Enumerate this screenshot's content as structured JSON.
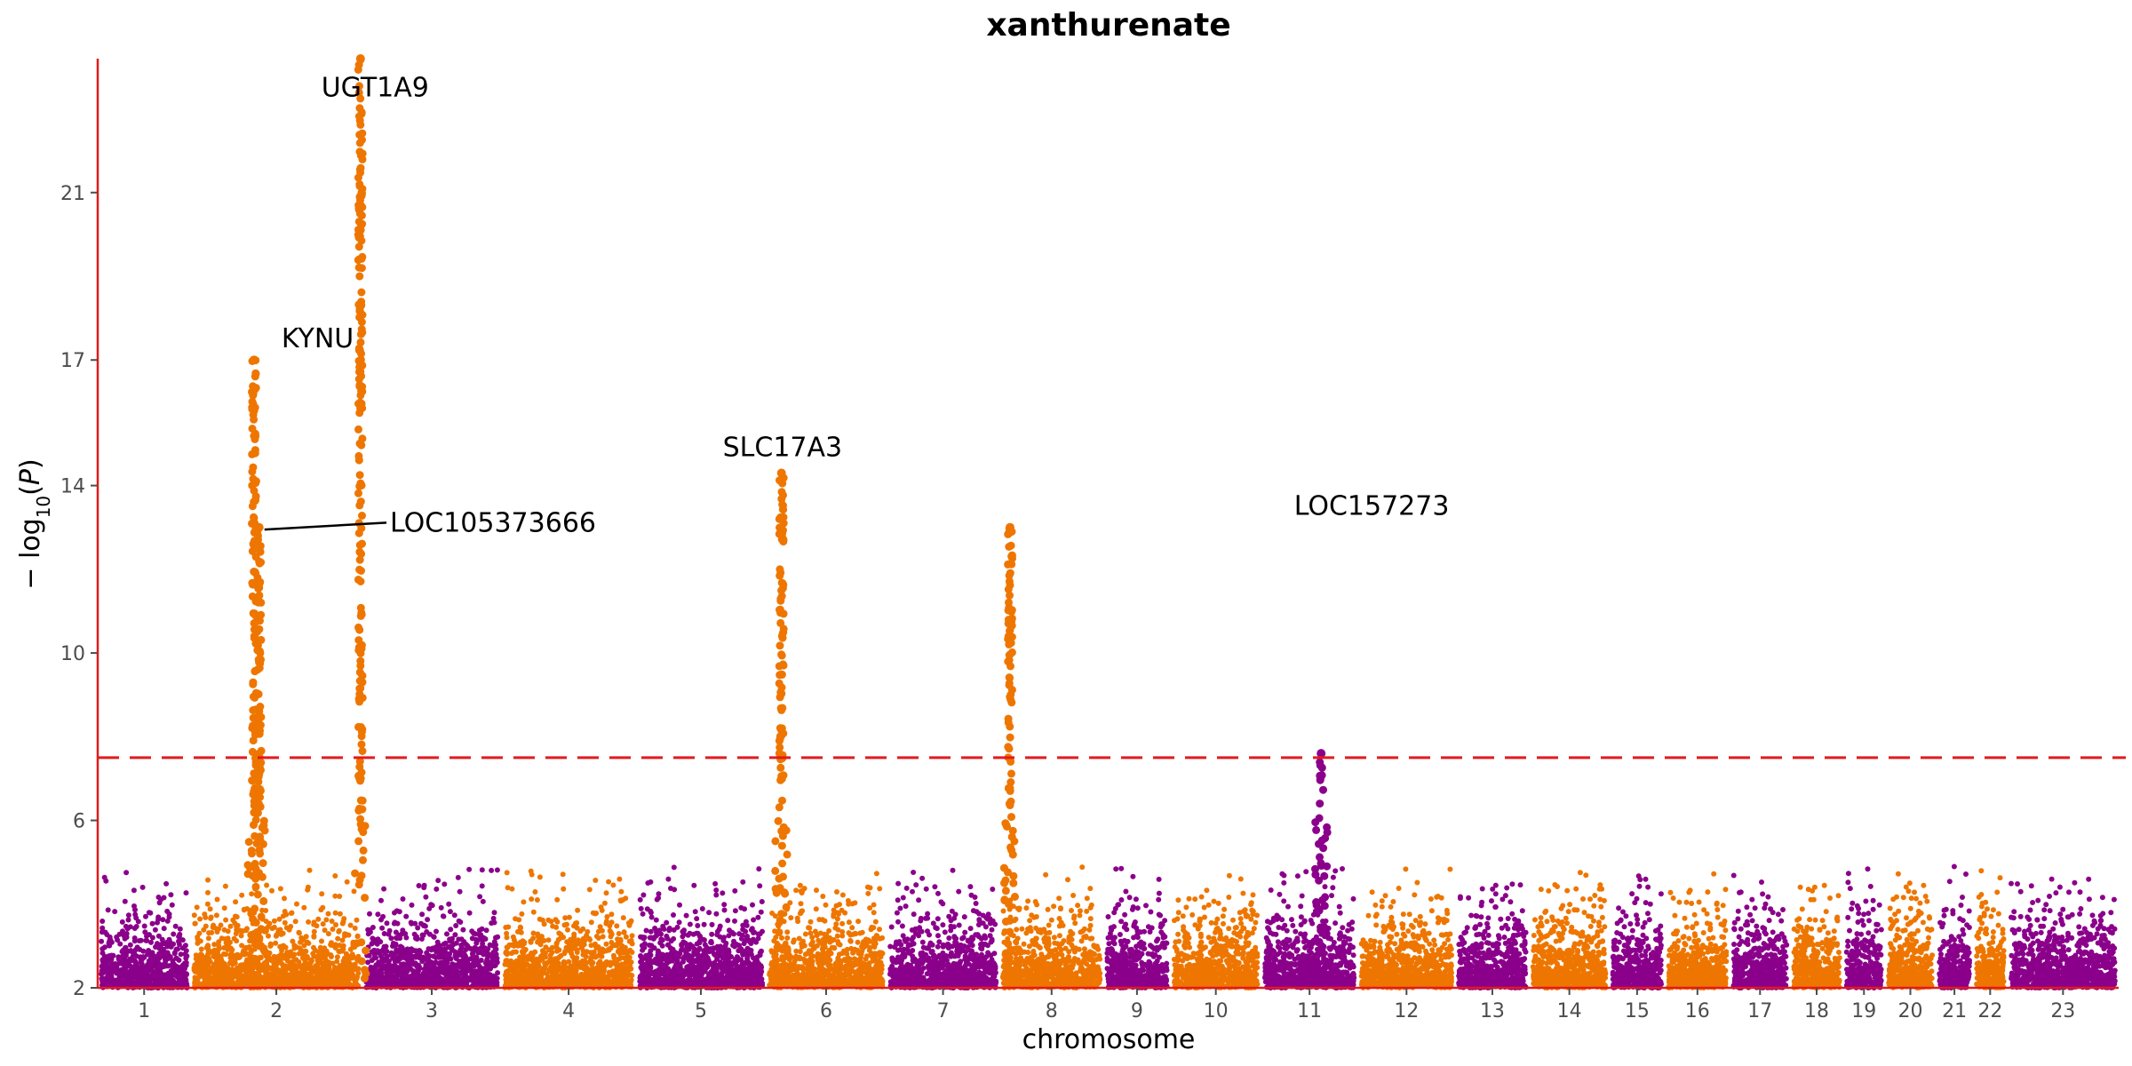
{
  "chart_data": {
    "type": "scatter",
    "subtype": "manhattan",
    "title": "xanthurenate",
    "xlabel": "chromosome",
    "ylabel": "−log10(P)",
    "ylim": [
      2,
      24.2
    ],
    "yticks": [
      2,
      6,
      10,
      14,
      17,
      21
    ],
    "threshold": 7.5,
    "grid": false,
    "legend": "none",
    "colors": {
      "odd": "#8B008B",
      "even": "#EE7600",
      "axis": "#E31A1C",
      "threshold": "#E31A1C"
    },
    "chromosomes": [
      {
        "label": "1",
        "w": 1.0
      },
      {
        "label": "2",
        "w": 1.85
      },
      {
        "label": "3",
        "w": 1.5
      },
      {
        "label": "4",
        "w": 1.45
      },
      {
        "label": "5",
        "w": 1.4
      },
      {
        "label": "6",
        "w": 1.3
      },
      {
        "label": "7",
        "w": 1.22
      },
      {
        "label": "8",
        "w": 1.12
      },
      {
        "label": "9",
        "w": 0.72
      },
      {
        "label": "10",
        "w": 0.98
      },
      {
        "label": "11",
        "w": 1.04
      },
      {
        "label": "12",
        "w": 1.05
      },
      {
        "label": "13",
        "w": 0.8
      },
      {
        "label": "14",
        "w": 0.86
      },
      {
        "label": "15",
        "w": 0.6
      },
      {
        "label": "16",
        "w": 0.7
      },
      {
        "label": "17",
        "w": 0.65
      },
      {
        "label": "18",
        "w": 0.57
      },
      {
        "label": "19",
        "w": 0.45
      },
      {
        "label": "20",
        "w": 0.55
      },
      {
        "label": "21",
        "w": 0.4
      },
      {
        "label": "22",
        "w": 0.37
      },
      {
        "label": "23",
        "w": 1.2
      }
    ],
    "peaks": [
      {
        "chr": "2",
        "pos": 0.37,
        "max": 17.0,
        "name": "KYNU"
      },
      {
        "chr": "2",
        "pos": 0.4,
        "max": 13.0,
        "name": "LOC105373666"
      },
      {
        "chr": "2",
        "pos": 0.99,
        "max": 24.2,
        "name": "UGT1A9"
      },
      {
        "chr": "6",
        "pos": 0.13,
        "max": 14.3,
        "name": "SLC17A3"
      },
      {
        "chr": "8",
        "pos": 0.1,
        "max": 13.0,
        "name": "LOC157273"
      },
      {
        "chr": "11",
        "pos": 0.62,
        "max": 7.6,
        "name": ""
      }
    ],
    "annotations": [
      {
        "text": "UGT1A9",
        "x": 2.99,
        "y": 23.3
      },
      {
        "text": "KYNU",
        "x": 2.37,
        "y": 17.3
      },
      {
        "text": "LOC105373666",
        "x": 3.15,
        "y": 12.9
      },
      {
        "text": "SLC17A3",
        "x": 7.38,
        "y": 14.7
      },
      {
        "text": "LOC157273",
        "x": 13.73,
        "y": 13.3
      }
    ]
  }
}
